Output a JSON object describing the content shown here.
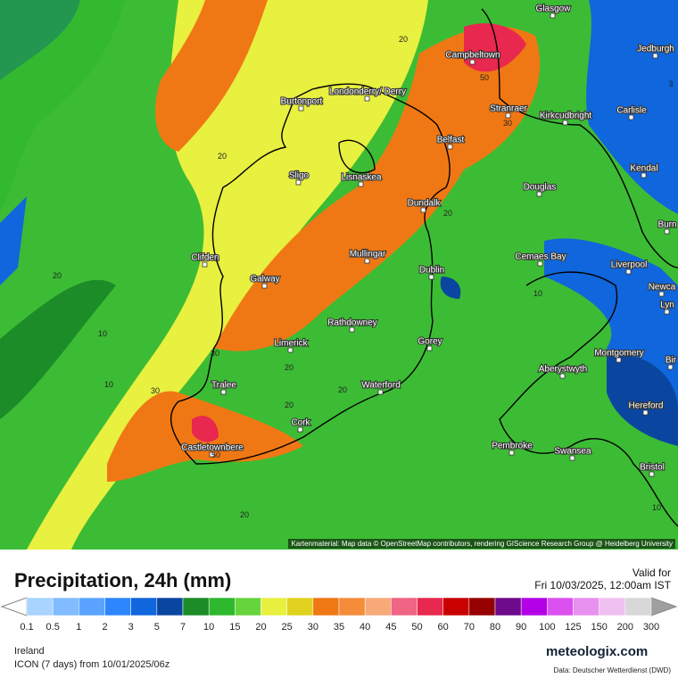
{
  "header": {
    "title": "Precipitation, 24h (mm)",
    "valid_label": "Valid for",
    "valid_time": "Fri 10/03/2025, 12:00am IST"
  },
  "map": {
    "attribution": "Kartenmaterial: Map data © OpenStreetMap contributors, rendering GIScience Research Group @ Heidelberg University",
    "cities": [
      "Glasgow",
      "Jedburgh",
      "Campbeltown",
      "Burtonport",
      "Londonderry/ Derry",
      "Stranraer",
      "Kirkcudbright",
      "Carlisle",
      "Belfast",
      "Sligo",
      "Lisnaskea",
      "Kendal",
      "Douglas",
      "Dundalk",
      "Clifden",
      "Mullingar",
      "Dublin",
      "Galway",
      "Cemaes Bay",
      "Liverpool",
      "Rathdowney",
      "Limerick",
      "Gorey",
      "Montgomery",
      "Aberystwyth",
      "Tralee",
      "Waterford",
      "Hereford",
      "Cork",
      "Castletownbere",
      "Pembroke",
      "Swansea",
      "Bristol",
      "Burn",
      "Newca",
      "Lyn",
      "Bir"
    ],
    "contour_labels": [
      20,
      20,
      20,
      20,
      30,
      50,
      20,
      10,
      10,
      30,
      20,
      30,
      20,
      50,
      20,
      10,
      10,
      3
    ]
  },
  "legend": {
    "levels": [
      0.1,
      0.5,
      1,
      2,
      3,
      5,
      7,
      10,
      15,
      20,
      25,
      30,
      35,
      40,
      45,
      50,
      60,
      70,
      80,
      90,
      100,
      125,
      150,
      200,
      300
    ],
    "colors": [
      "#a8d4ff",
      "#80bcff",
      "#5aa4ff",
      "#2e86ff",
      "#1066dc",
      "#0a46a0",
      "#1c8c28",
      "#2eb82e",
      "#66d43c",
      "#e8f040",
      "#e0d21e",
      "#f07814",
      "#f48c3a",
      "#f7aa78",
      "#f06484",
      "#e8284e",
      "#c80000",
      "#960000",
      "#6e0a8c",
      "#b400e6",
      "#dc50f0",
      "#e890f0",
      "#f0c0f0",
      "#d8d8d8"
    ]
  },
  "footer": {
    "region": "Ireland",
    "model": "ICON (7 days) from 10/01/2025/06z",
    "brand": "meteologix.com",
    "source": "Data: Deutscher Wetterdienst (DWD)"
  }
}
